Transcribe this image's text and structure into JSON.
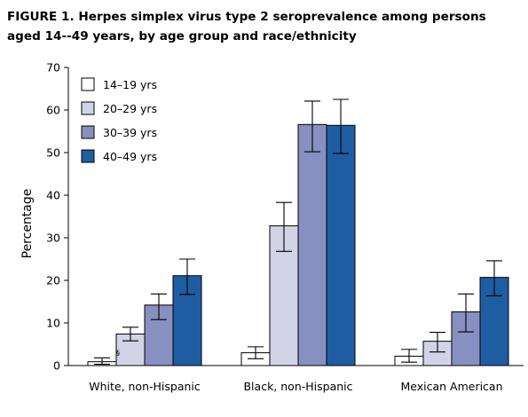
{
  "title_line1": "FIGURE 1. Herpes simplex virus type 2 seroprevalence among persons",
  "title_line2": "aged 14--49 years, by age group and race/ethnicity",
  "chart_data": {
    "type": "bar",
    "title": "FIGURE 1. Herpes simplex virus type 2 seroprevalence among persons aged 14--49 years, by age group and race/ethnicity",
    "xlabel": "",
    "ylabel": "Percentage",
    "ylim": [
      0,
      70
    ],
    "yticks": [
      0,
      10,
      20,
      30,
      40,
      50,
      60,
      70
    ],
    "categories": [
      "White, non-Hispanic",
      "Black, non-Hispanic",
      "Mexican American"
    ],
    "series": [
      {
        "name": "14–19 yrs",
        "color": "#ffffff",
        "values": [
          0.9,
          3.0,
          2.2
        ],
        "err_low": [
          0.3,
          1.6,
          0.8
        ],
        "err_high": [
          1.8,
          4.4,
          3.8
        ]
      },
      {
        "name": "20–29 yrs",
        "color": "#d2d3e6",
        "values": [
          7.4,
          32.8,
          5.7
        ],
        "err_low": [
          5.8,
          26.8,
          3.2
        ],
        "err_high": [
          9.0,
          38.3,
          7.8
        ]
      },
      {
        "name": "30–39 yrs",
        "color": "#8790c0",
        "values": [
          14.2,
          56.6,
          12.6
        ],
        "err_low": [
          10.8,
          50.2,
          7.9
        ],
        "err_high": [
          16.8,
          62.1,
          16.8
        ]
      },
      {
        "name": "40–49 yrs",
        "color": "#1f5da3",
        "values": [
          21.1,
          56.4,
          20.7
        ],
        "err_low": [
          16.7,
          49.8,
          16.4
        ],
        "err_high": [
          25.0,
          62.5,
          24.6
        ]
      }
    ],
    "annotation": "§",
    "legend_position": "top-left",
    "grid": false
  }
}
